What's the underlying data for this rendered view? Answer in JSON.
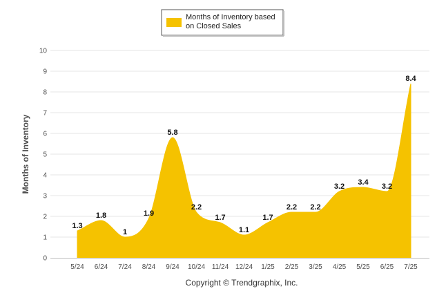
{
  "chart_data": {
    "type": "area",
    "categories": [
      "5/24",
      "6/24",
      "7/24",
      "8/24",
      "9/24",
      "10/24",
      "11/24",
      "12/24",
      "1/25",
      "2/25",
      "3/25",
      "4/25",
      "5/25",
      "6/25",
      "7/25"
    ],
    "series": [
      {
        "name": "Months of Inventory based on Closed Sales",
        "values": [
          1.3,
          1.8,
          1,
          1.9,
          5.8,
          2.2,
          1.7,
          1.1,
          1.7,
          2.2,
          2.2,
          3.2,
          3.4,
          3.2,
          8.4
        ],
        "color": "#f5c200"
      }
    ],
    "data_labels": [
      "1.3",
      "1.8",
      "1",
      "1.9",
      "5.8",
      "2.2",
      "1.7",
      "1.1",
      "1.7",
      "2.2",
      "2.2",
      "3.2",
      "3.4",
      "3.2",
      "8.4"
    ],
    "ylabel": "Months of Inventory",
    "xlabel": "",
    "ylim": [
      0,
      10
    ],
    "yticks": [
      0,
      1,
      2,
      3,
      4,
      5,
      6,
      7,
      8,
      9,
      10
    ],
    "grid": true,
    "legend_position": "top-center",
    "legend_lines": [
      "Months of Inventory based",
      "on Closed Sales"
    ],
    "footer": "Copyright © Trendgraphix, Inc."
  }
}
